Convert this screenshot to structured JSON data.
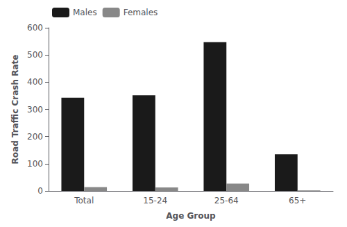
{
  "chart_data": {
    "type": "bar",
    "xlabel": "Age Group",
    "ylabel": "Road Traffic Crash Rate",
    "categories": [
      "Total",
      "15-24",
      "25-64",
      "65+"
    ],
    "series": [
      {
        "name": "Males",
        "color": "#1a1a1a",
        "values": [
          343,
          352,
          547,
          135
        ]
      },
      {
        "name": "Females",
        "color": "#888888",
        "values": [
          14,
          13,
          27,
          2
        ]
      }
    ],
    "ylim": [
      0,
      600
    ],
    "yticks": [
      0,
      100,
      200,
      300,
      400,
      500,
      600
    ],
    "grid": false,
    "legend": "upper left"
  }
}
